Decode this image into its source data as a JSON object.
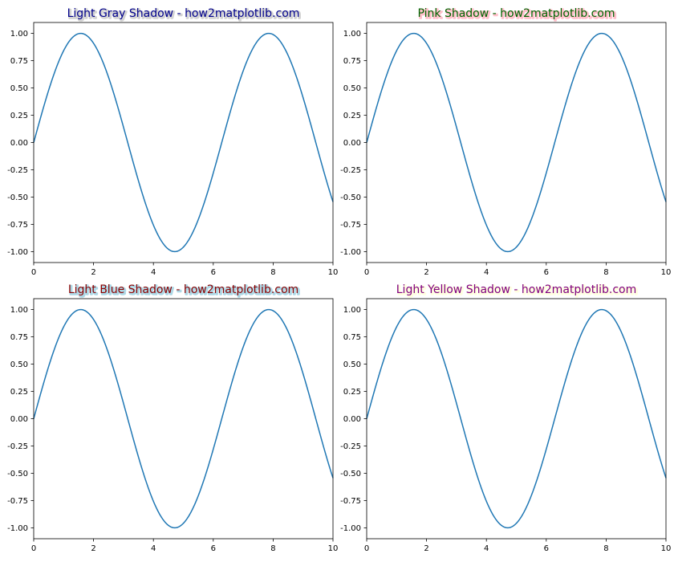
{
  "chart_data": [
    {
      "type": "line",
      "title": "Light Gray Shadow - how2matplotlib.com",
      "title_color": "#00008b",
      "shadow_color": "#d3d3d3",
      "xlabel": "",
      "ylabel": "",
      "xlim": [
        0,
        10
      ],
      "ylim": [
        -1.1,
        1.1
      ],
      "xticks": [
        0,
        2,
        4,
        6,
        8,
        10
      ],
      "xtick_labels": [
        "0",
        "2",
        "4",
        "6",
        "8",
        "10"
      ],
      "yticks": [
        -1.0,
        -0.75,
        -0.5,
        -0.25,
        0.0,
        0.25,
        0.5,
        0.75,
        1.0
      ],
      "ytick_labels": [
        "-1.00",
        "-0.75",
        "-0.50",
        "-0.25",
        "0.00",
        "0.25",
        "0.50",
        "0.75",
        "1.00"
      ],
      "grid": false,
      "series": [
        {
          "function": "sin(x)",
          "color": "#1f77b4",
          "x": [
            0.0,
            0.5,
            1.0,
            1.5,
            1.57,
            2.0,
            2.5,
            3.0,
            3.5,
            4.0,
            4.5,
            4.71,
            5.0,
            5.5,
            6.0,
            6.5,
            7.0,
            7.5,
            7.85,
            8.0,
            8.5,
            9.0,
            9.5,
            10.0
          ],
          "y": [
            0.0,
            0.479,
            0.841,
            0.997,
            1.0,
            0.909,
            0.598,
            0.141,
            -0.351,
            -0.757,
            -0.978,
            -1.0,
            -0.959,
            -0.706,
            -0.279,
            0.215,
            0.657,
            0.938,
            1.0,
            0.989,
            0.798,
            0.412,
            -0.075,
            -0.544
          ]
        }
      ]
    },
    {
      "type": "line",
      "title": "Pink Shadow - how2matplotlib.com",
      "title_color": "#006400",
      "shadow_color": "#ffc0cb",
      "xlabel": "",
      "ylabel": "",
      "xlim": [
        0,
        10
      ],
      "ylim": [
        -1.1,
        1.1
      ],
      "xticks": [
        0,
        2,
        4,
        6,
        8,
        10
      ],
      "xtick_labels": [
        "0",
        "2",
        "4",
        "6",
        "8",
        "10"
      ],
      "yticks": [
        -1.0,
        -0.75,
        -0.5,
        -0.25,
        0.0,
        0.25,
        0.5,
        0.75,
        1.0
      ],
      "ytick_labels": [
        "-1.00",
        "-0.75",
        "-0.50",
        "-0.25",
        "0.00",
        "0.25",
        "0.50",
        "0.75",
        "1.00"
      ],
      "grid": false,
      "series": [
        {
          "function": "sin(x)",
          "color": "#1f77b4",
          "x": [
            0.0,
            0.5,
            1.0,
            1.5,
            1.57,
            2.0,
            2.5,
            3.0,
            3.5,
            4.0,
            4.5,
            4.71,
            5.0,
            5.5,
            6.0,
            6.5,
            7.0,
            7.5,
            7.85,
            8.0,
            8.5,
            9.0,
            9.5,
            10.0
          ],
          "y": [
            0.0,
            0.479,
            0.841,
            0.997,
            1.0,
            0.909,
            0.598,
            0.141,
            -0.351,
            -0.757,
            -0.978,
            -1.0,
            -0.959,
            -0.706,
            -0.279,
            0.215,
            0.657,
            0.938,
            1.0,
            0.989,
            0.798,
            0.412,
            -0.075,
            -0.544
          ]
        }
      ]
    },
    {
      "type": "line",
      "title": "Light Blue Shadow - how2matplotlib.com",
      "title_color": "#8b0000",
      "shadow_color": "#add8e6",
      "xlabel": "",
      "ylabel": "",
      "xlim": [
        0,
        10
      ],
      "ylim": [
        -1.1,
        1.1
      ],
      "xticks": [
        0,
        2,
        4,
        6,
        8,
        10
      ],
      "xtick_labels": [
        "0",
        "2",
        "4",
        "6",
        "8",
        "10"
      ],
      "yticks": [
        -1.0,
        -0.75,
        -0.5,
        -0.25,
        0.0,
        0.25,
        0.5,
        0.75,
        1.0
      ],
      "ytick_labels": [
        "-1.00",
        "-0.75",
        "-0.50",
        "-0.25",
        "0.00",
        "0.25",
        "0.50",
        "0.75",
        "1.00"
      ],
      "grid": false,
      "series": [
        {
          "function": "sin(x)",
          "color": "#1f77b4",
          "x": [
            0.0,
            0.5,
            1.0,
            1.5,
            1.57,
            2.0,
            2.5,
            3.0,
            3.5,
            4.0,
            4.5,
            4.71,
            5.0,
            5.5,
            6.0,
            6.5,
            7.0,
            7.5,
            7.85,
            8.0,
            8.5,
            9.0,
            9.5,
            10.0
          ],
          "y": [
            0.0,
            0.479,
            0.841,
            0.997,
            1.0,
            0.909,
            0.598,
            0.141,
            -0.351,
            -0.757,
            -0.978,
            -1.0,
            -0.959,
            -0.706,
            -0.279,
            0.215,
            0.657,
            0.938,
            1.0,
            0.989,
            0.798,
            0.412,
            -0.075,
            -0.544
          ]
        }
      ]
    },
    {
      "type": "line",
      "title": "Light Yellow Shadow - how2matplotlib.com",
      "title_color": "#800080",
      "shadow_color": "#ffffe0",
      "xlabel": "",
      "ylabel": "",
      "xlim": [
        0,
        10
      ],
      "ylim": [
        -1.1,
        1.1
      ],
      "xticks": [
        0,
        2,
        4,
        6,
        8,
        10
      ],
      "xtick_labels": [
        "0",
        "2",
        "4",
        "6",
        "8",
        "10"
      ],
      "yticks": [
        -1.0,
        -0.75,
        -0.5,
        -0.25,
        0.0,
        0.25,
        0.5,
        0.75,
        1.0
      ],
      "ytick_labels": [
        "-1.00",
        "-0.75",
        "-0.50",
        "-0.25",
        "0.00",
        "0.25",
        "0.50",
        "0.75",
        "1.00"
      ],
      "grid": false,
      "series": [
        {
          "function": "sin(x)",
          "color": "#1f77b4",
          "x": [
            0.0,
            0.5,
            1.0,
            1.5,
            1.57,
            2.0,
            2.5,
            3.0,
            3.5,
            4.0,
            4.5,
            4.71,
            5.0,
            5.5,
            6.0,
            6.5,
            7.0,
            7.5,
            7.85,
            8.0,
            8.5,
            9.0,
            9.5,
            10.0
          ],
          "y": [
            0.0,
            0.479,
            0.841,
            0.997,
            1.0,
            0.909,
            0.598,
            0.141,
            -0.351,
            -0.757,
            -0.978,
            -1.0,
            -0.959,
            -0.706,
            -0.279,
            0.215,
            0.657,
            0.938,
            1.0,
            0.989,
            0.798,
            0.412,
            -0.075,
            -0.544
          ]
        }
      ]
    }
  ]
}
